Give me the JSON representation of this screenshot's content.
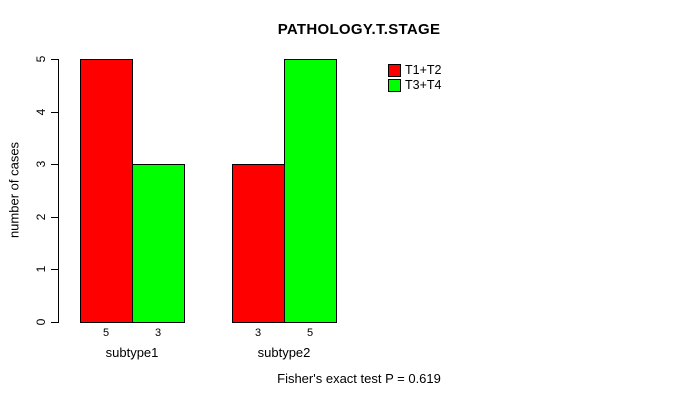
{
  "chart_data": {
    "type": "bar",
    "title": "PATHOLOGY.T.STAGE",
    "ylabel": "number of cases",
    "xlabel": "",
    "ylim": [
      0,
      5
    ],
    "yticks": [
      0,
      1,
      2,
      3,
      4,
      5
    ],
    "categories": [
      "subtype1",
      "subtype2"
    ],
    "series": [
      {
        "name": "T1+T2",
        "color": "#FF0000",
        "values": [
          5,
          3
        ]
      },
      {
        "name": "T3+T4",
        "color": "#00FF00",
        "values": [
          3,
          5
        ]
      }
    ],
    "bar_count_labels": [
      [
        "5",
        "3"
      ],
      [
        "3",
        "5"
      ]
    ],
    "annotation": "Fisher's exact test P = 0.619",
    "legend_position": "top-right",
    "grid": false,
    "bar_border_color": "#000000",
    "background_color": "#FFFFFF"
  }
}
